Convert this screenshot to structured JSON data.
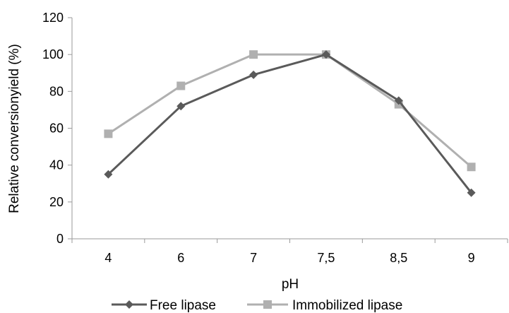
{
  "chart_data": {
    "type": "line",
    "title": "",
    "xlabel": "pH",
    "ylabel": "Relative conversionyield (%)",
    "categories": [
      "4",
      "6",
      "7",
      "7,5",
      "8,5",
      "9"
    ],
    "ylim": [
      0,
      120
    ],
    "yticks": [
      "0",
      "20",
      "40",
      "60",
      "80",
      "100",
      "120"
    ],
    "grid": false,
    "legend_position": "bottom",
    "series": [
      {
        "name": "Free lipase",
        "values": [
          35,
          72,
          89,
          100,
          75,
          25
        ],
        "color": "#5a5a5a",
        "marker": "diamond"
      },
      {
        "name": "Immobilized lipase",
        "values": [
          57,
          83,
          100,
          100,
          73,
          39
        ],
        "color": "#b0b0b0",
        "marker": "square"
      }
    ]
  }
}
